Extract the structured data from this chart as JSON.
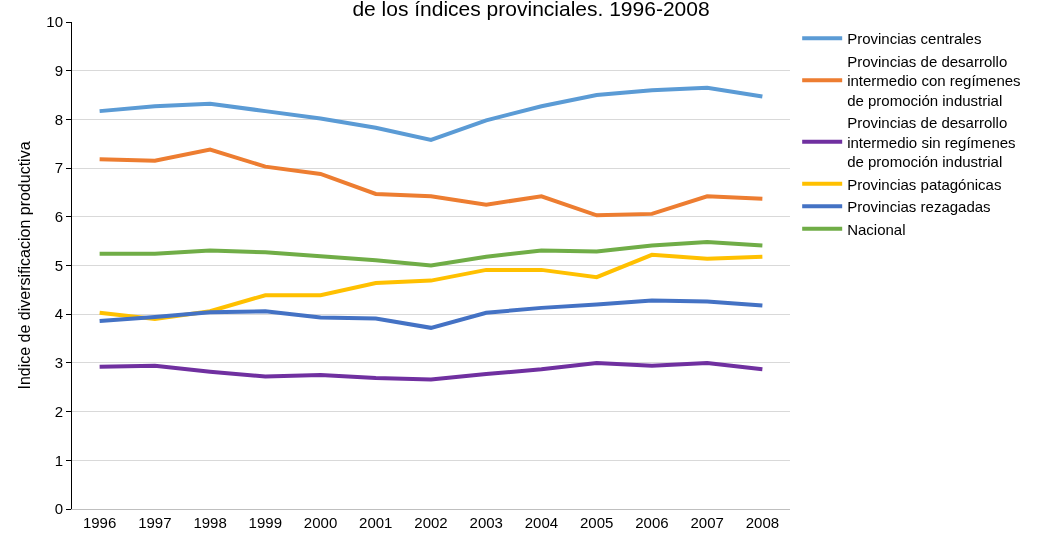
{
  "chart_data": {
    "type": "line",
    "title": "de los índices provinciales. 1996-2008",
    "ylabel": "Indice de diversificacion productiva",
    "categories": [
      "1996",
      "1997",
      "1998",
      "1999",
      "2000",
      "2001",
      "2002",
      "2003",
      "2004",
      "2005",
      "2006",
      "2007",
      "2008"
    ],
    "ylim": [
      0,
      10
    ],
    "yticks": [
      0,
      1,
      2,
      3,
      4,
      5,
      6,
      7,
      8,
      9,
      10
    ],
    "grid": "y",
    "legend": "right",
    "marker": "none",
    "line_style": "solid",
    "series": [
      {
        "name": "Provincias centrales",
        "color": "#5b9bd5",
        "values": [
          8.17,
          8.27,
          8.32,
          8.17,
          8.02,
          7.83,
          7.58,
          7.98,
          8.27,
          8.5,
          8.6,
          8.65,
          8.47
        ]
      },
      {
        "name": "Provincias de desarrollo intermedio con regímenes de promoción industrial",
        "color": "#ed7d31",
        "values": [
          7.18,
          7.15,
          7.38,
          7.03,
          6.88,
          6.47,
          6.42,
          6.25,
          6.42,
          6.03,
          6.06,
          6.42,
          6.37
        ]
      },
      {
        "name": "Provincias de desarrollo intermedio sin regímenes de promoción industrial",
        "color": "#7030a0",
        "values": [
          2.92,
          2.94,
          2.82,
          2.72,
          2.75,
          2.69,
          2.66,
          2.77,
          2.87,
          3.0,
          2.94,
          3.0,
          2.87
        ]
      },
      {
        "name": "Provincias patagónicas",
        "color": "#ffc000",
        "values": [
          4.03,
          3.9,
          4.06,
          4.39,
          4.39,
          4.64,
          4.69,
          4.91,
          4.91,
          4.76,
          5.22,
          5.14,
          5.18
        ]
      },
      {
        "name": "Provincias rezagadas",
        "color": "#4472c4",
        "values": [
          3.86,
          3.94,
          4.04,
          4.06,
          3.93,
          3.91,
          3.72,
          4.03,
          4.13,
          4.2,
          4.28,
          4.26,
          4.18
        ]
      },
      {
        "name": "Nacional",
        "color": "#70ad47",
        "values": [
          5.24,
          5.24,
          5.31,
          5.27,
          5.19,
          5.11,
          5.0,
          5.18,
          5.31,
          5.29,
          5.41,
          5.48,
          5.41
        ]
      }
    ]
  }
}
